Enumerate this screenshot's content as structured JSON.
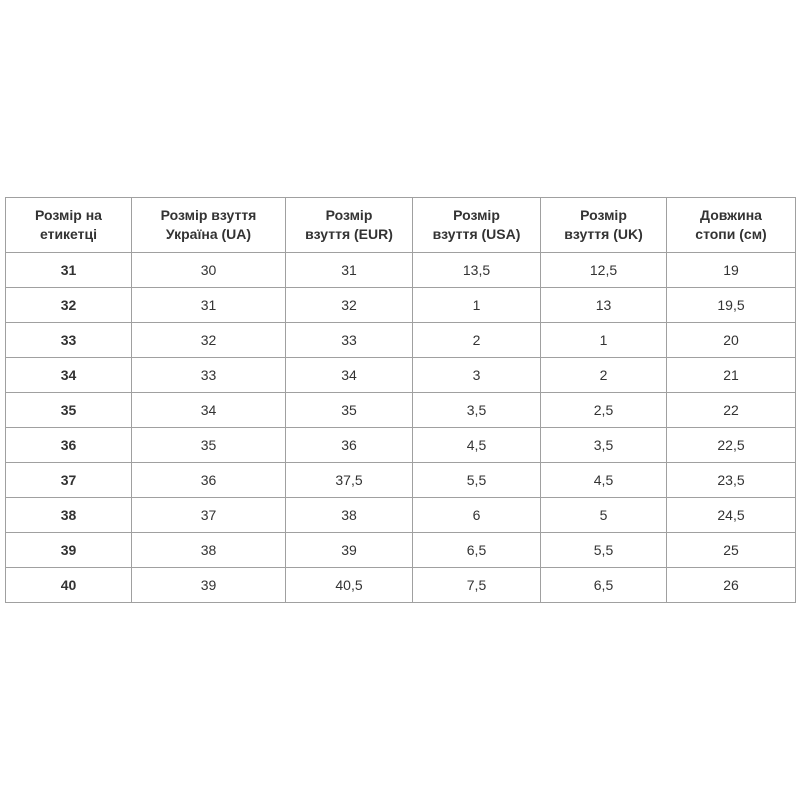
{
  "table": {
    "header": [
      "Розмір на\nетикетці",
      "Розмір взуття\nУкраїна (UA)",
      "Розмір\nвзуття (EUR)",
      "Розмір\nвзуття (USA)",
      "Розмір\nвзуття (UK)",
      "Довжина\nстопи (см)"
    ],
    "rows": [
      [
        "31",
        "30",
        "31",
        "13,5",
        "12,5",
        "19"
      ],
      [
        "32",
        "31",
        "32",
        "1",
        "13",
        "19,5"
      ],
      [
        "33",
        "32",
        "33",
        "2",
        "1",
        "20"
      ],
      [
        "34",
        "33",
        "34",
        "3",
        "2",
        "21"
      ],
      [
        "35",
        "34",
        "35",
        "3,5",
        "2,5",
        "22"
      ],
      [
        "36",
        "35",
        "36",
        "4,5",
        "3,5",
        "22,5"
      ],
      [
        "37",
        "36",
        "37,5",
        "5,5",
        "4,5",
        "23,5"
      ],
      [
        "38",
        "37",
        "38",
        "6",
        "5",
        "24,5"
      ],
      [
        "39",
        "38",
        "39",
        "6,5",
        "5,5",
        "25"
      ],
      [
        "40",
        "39",
        "40,5",
        "7,5",
        "6,5",
        "26"
      ]
    ]
  }
}
